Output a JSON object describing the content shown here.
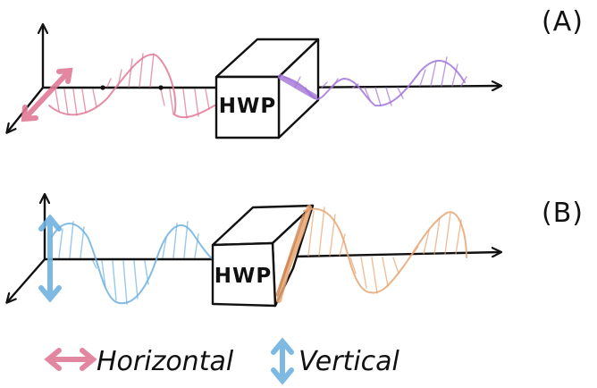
{
  "panels": [
    {
      "label": "(A)",
      "box_label": "HWP",
      "input_polarization": "horizontal",
      "output_polarization": "diagonal",
      "input_color": "#e07a95",
      "output_color": "#a275d8"
    },
    {
      "label": "(B)",
      "box_label": "HWP",
      "input_polarization": "vertical",
      "output_polarization": "diagonal",
      "input_color": "#6fb2df",
      "output_color": "#e6a472"
    }
  ],
  "legend": {
    "horizontal": {
      "label": "Horizontal",
      "color": "#e07a95"
    },
    "vertical": {
      "label": "Vertical",
      "color": "#6fb2df"
    }
  },
  "colors": {
    "ink": "#111111"
  }
}
